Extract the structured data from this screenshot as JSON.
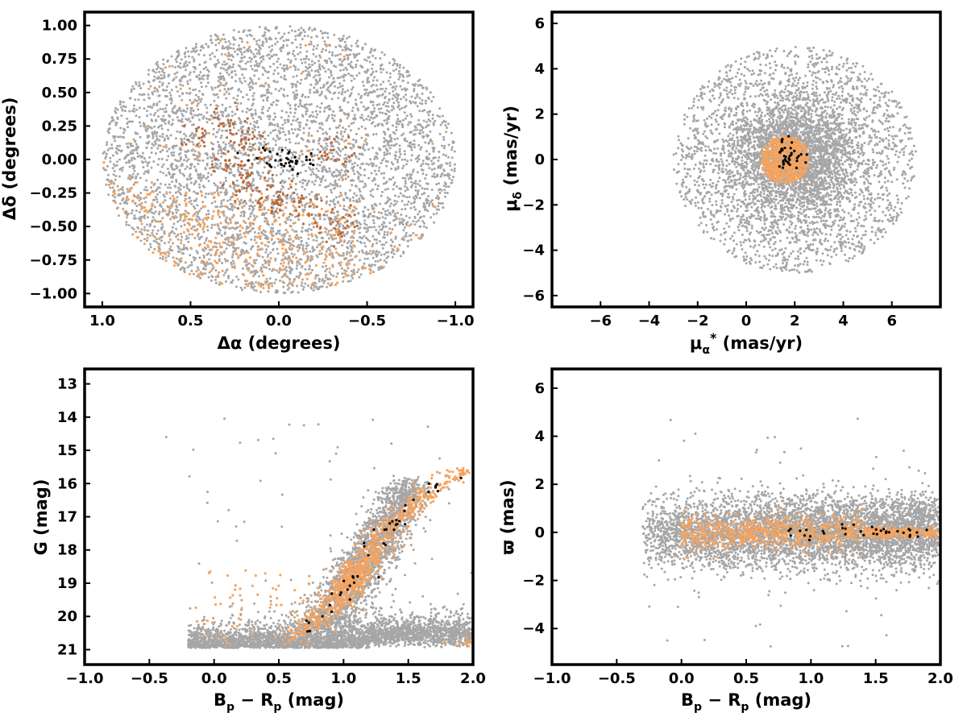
{
  "colors": {
    "field": "#a6a6a6",
    "orange": "#f4a460",
    "brown": "#b8693a",
    "member": "#000000"
  },
  "chart_data": [
    {
      "type": "scatter",
      "title": "",
      "xlabel": "Δα (degrees)",
      "ylabel": "Δδ (degrees)",
      "xlim": [
        1.1,
        -1.1
      ],
      "ylim": [
        -1.1,
        1.1
      ],
      "x_inverted": true,
      "xticks": [
        "1.0",
        "0.5",
        "0.0",
        "−0.5",
        "−1.0"
      ],
      "xtick_values": [
        1.0,
        0.5,
        0.0,
        -0.5,
        -1.0
      ],
      "yticks": [
        "−1.00",
        "−0.75",
        "−0.50",
        "−0.25",
        "0.00",
        "0.25",
        "0.50",
        "0.75",
        "1.00"
      ],
      "ytick_values": [
        -1.0,
        -0.75,
        -0.5,
        -0.25,
        0.0,
        0.25,
        0.5,
        0.75,
        1.0
      ],
      "series_desc": [
        {
          "group": "field",
          "shape": "disk",
          "radius": 1.0,
          "center": [
            0.0,
            0.0
          ],
          "n": 4500
        },
        {
          "group": "orange",
          "region": "southern half of field",
          "n": 1400
        },
        {
          "group": "brown",
          "region": "diffuse filaments near center",
          "n": 260
        },
        {
          "group": "member",
          "n": 40
        }
      ]
    },
    {
      "type": "scatter",
      "title": "",
      "xlabel": "μα* (mas/yr)",
      "ylabel": "μδ (mas/yr)",
      "xlim": [
        -8,
        8
      ],
      "ylim": [
        -6.5,
        6.5
      ],
      "xticks": [
        "−6",
        "−4",
        "−2",
        "0",
        "2",
        "4",
        "6"
      ],
      "xtick_values": [
        -6,
        -4,
        -2,
        0,
        2,
        4,
        6
      ],
      "yticks": [
        "−6",
        "−4",
        "−2",
        "0",
        "2",
        "4",
        "6"
      ],
      "ytick_values": [
        -6,
        -4,
        -2,
        0,
        2,
        4,
        6
      ],
      "series_desc": [
        {
          "group": "field",
          "shape": "disk",
          "center": [
            2.0,
            0.0
          ],
          "radius": 5.0,
          "n": 5000
        },
        {
          "group": "orange",
          "center": [
            1.6,
            0.0
          ],
          "radius": 1.0,
          "n": 700
        },
        {
          "group": "member",
          "center": [
            1.7,
            0.2
          ],
          "radius": 0.5,
          "n": 40
        }
      ]
    },
    {
      "type": "scatter",
      "title": "",
      "xlabel": "Bp − Rp (mag)",
      "ylabel": "G (mag)",
      "xlim": [
        -1.0,
        2.0
      ],
      "ylim": [
        21.45,
        12.55
      ],
      "y_inverted": true,
      "xticks": [
        "−1.0",
        "−0.5",
        "0.0",
        "0.5",
        "1.0",
        "1.5",
        "2.0"
      ],
      "xtick_values": [
        -1.0,
        -0.5,
        0.0,
        0.5,
        1.0,
        1.5,
        2.0
      ],
      "yticks": [
        "13",
        "14",
        "15",
        "16",
        "17",
        "18",
        "19",
        "20",
        "21"
      ],
      "ytick_values": [
        13,
        14,
        15,
        16,
        17,
        18,
        19,
        20,
        21
      ],
      "series_desc": [
        {
          "group": "field",
          "n": 5200
        },
        {
          "group": "orange",
          "sequence": [
            [
              0.6,
              20.7
            ],
            [
              0.9,
              19.8
            ],
            [
              1.05,
              19.0
            ],
            [
              1.2,
              18.2
            ],
            [
              1.35,
              17.3
            ],
            [
              1.5,
              16.8
            ],
            [
              1.7,
              16.1
            ],
            [
              1.95,
              15.6
            ]
          ],
          "n": 900
        },
        {
          "group": "member",
          "n": 45
        }
      ]
    },
    {
      "type": "scatter",
      "title": "",
      "xlabel": "Bp − Rp (mag)",
      "ylabel": "ϖ (mas)",
      "xlim": [
        -1.0,
        2.0
      ],
      "ylim": [
        -5.5,
        6.8
      ],
      "xticks": [
        "−1.0",
        "−0.5",
        "0.0",
        "0.5",
        "1.0",
        "1.5",
        "2.0"
      ],
      "xtick_values": [
        -1.0,
        -0.5,
        0.0,
        0.5,
        1.0,
        1.5,
        2.0
      ],
      "yticks": [
        "−4",
        "−2",
        "0",
        "2",
        "4",
        "6"
      ],
      "ytick_values": [
        -4,
        -2,
        0,
        2,
        4,
        6
      ],
      "series_desc": [
        {
          "group": "field",
          "center_y": 0.0,
          "n": 5000
        },
        {
          "group": "orange",
          "center_y": 0.0,
          "n": 900
        },
        {
          "group": "member",
          "center_y": 0.0,
          "n": 35
        }
      ]
    }
  ]
}
